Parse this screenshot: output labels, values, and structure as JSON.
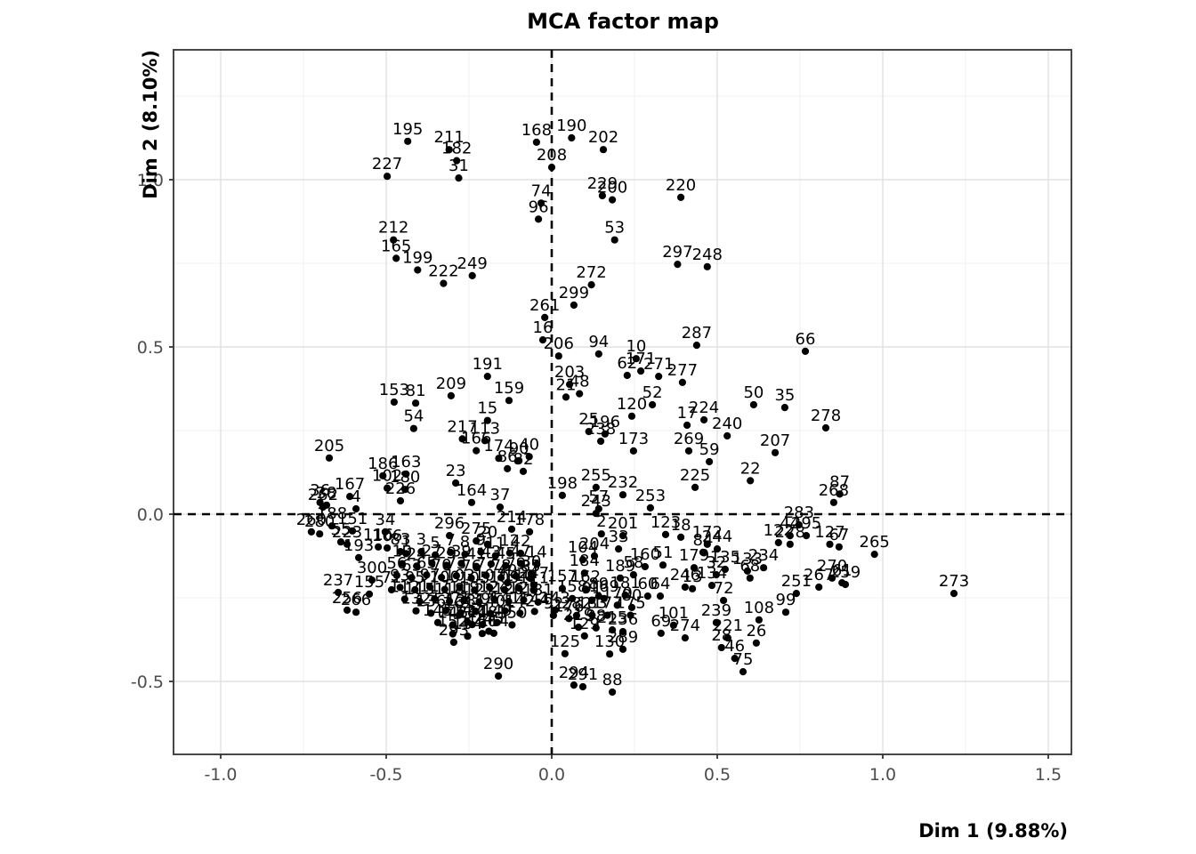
{
  "title": "MCA factor map",
  "chart_data": {
    "type": "scatter",
    "title": "MCA factor map",
    "xlabel": "Dim 1 (9.88%)",
    "ylabel": "Dim 2 (8.10%)",
    "xlim": [
      -1.14,
      1.57
    ],
    "ylim": [
      -0.72,
      1.39
    ],
    "grid": true,
    "legend": "none",
    "point_color": "#000000",
    "grid_major_color": "#e2e2e2",
    "grid_minor_color": "#f0f0f0",
    "panel_border_color": "#333333",
    "tick_text_color": "#4d4d4d",
    "reference_lines": {
      "vline_x": 0,
      "hline_y": 0,
      "style": "dashed",
      "color": "#000000"
    },
    "x_ticks": [
      {
        "value": -1.0,
        "label": "-1.0"
      },
      {
        "value": -0.5,
        "label": "-0.5"
      },
      {
        "value": 0.0,
        "label": "0.0"
      },
      {
        "value": 0.5,
        "label": "0.5"
      },
      {
        "value": 1.0,
        "label": "1.0"
      },
      {
        "value": 1.5,
        "label": "1.5"
      }
    ],
    "y_ticks": [
      {
        "value": 1.0,
        "label": "1.0"
      },
      {
        "value": 0.5,
        "label": "0.5"
      },
      {
        "value": 0.0,
        "label": "0.0"
      },
      {
        "value": -0.5,
        "label": "-0.5"
      }
    ],
    "x_minor": [
      -0.75,
      -0.25,
      0.25,
      0.75,
      1.25
    ],
    "y_minor": [
      -0.25,
      0.25,
      0.75,
      1.25
    ],
    "points": [
      [
        "195",
        -0.435,
        1.115
      ],
      [
        "211",
        -0.31,
        1.09
      ],
      [
        "182",
        -0.287,
        1.057
      ],
      [
        "31",
        -0.281,
        1.005
      ],
      [
        "227",
        -0.497,
        1.01
      ],
      [
        "168",
        -0.046,
        1.112
      ],
      [
        "190",
        0.06,
        1.125
      ],
      [
        "202",
        0.156,
        1.09
      ],
      [
        "208",
        0.0,
        1.037
      ],
      [
        "74",
        -0.032,
        0.93
      ],
      [
        "96",
        -0.04,
        0.882
      ],
      [
        "229",
        0.153,
        0.952
      ],
      [
        "200",
        0.183,
        0.94
      ],
      [
        "220",
        0.39,
        0.947
      ],
      [
        "53",
        0.19,
        0.82
      ],
      [
        "212",
        -0.478,
        0.82
      ],
      [
        "165",
        -0.47,
        0.765
      ],
      [
        "199",
        -0.405,
        0.73
      ],
      [
        "222",
        -0.327,
        0.69
      ],
      [
        "249",
        -0.24,
        0.713
      ],
      [
        "297",
        0.38,
        0.747
      ],
      [
        "248",
        0.47,
        0.74
      ],
      [
        "272",
        0.12,
        0.686
      ],
      [
        "299",
        0.067,
        0.625
      ],
      [
        "261",
        -0.021,
        0.588
      ],
      [
        "16",
        -0.027,
        0.521
      ],
      [
        "206",
        0.021,
        0.473
      ],
      [
        "94",
        0.142,
        0.479
      ],
      [
        "10",
        0.255,
        0.465
      ],
      [
        "62",
        0.228,
        0.415
      ],
      [
        "171",
        0.269,
        0.428
      ],
      [
        "271",
        0.323,
        0.412
      ],
      [
        "277",
        0.395,
        0.394
      ],
      [
        "287",
        0.438,
        0.505
      ],
      [
        "66",
        0.766,
        0.487
      ],
      [
        "191",
        -0.194,
        0.412
      ],
      [
        "159",
        -0.129,
        0.34
      ],
      [
        "153",
        -0.476,
        0.335
      ],
      [
        "81",
        -0.411,
        0.332
      ],
      [
        "209",
        -0.304,
        0.354
      ],
      [
        "54",
        -0.417,
        0.256
      ],
      [
        "15",
        -0.194,
        0.28
      ],
      [
        "203",
        0.054,
        0.388
      ],
      [
        "21",
        0.043,
        0.35
      ],
      [
        "48",
        0.084,
        0.36
      ],
      [
        "52",
        0.304,
        0.327
      ],
      [
        "120",
        0.242,
        0.293
      ],
      [
        "50",
        0.61,
        0.327
      ],
      [
        "35",
        0.704,
        0.319
      ],
      [
        "278",
        0.828,
        0.258
      ],
      [
        "17",
        0.409,
        0.266
      ],
      [
        "224",
        0.46,
        0.282
      ],
      [
        "240",
        0.53,
        0.234
      ],
      [
        "207",
        0.675,
        0.184
      ],
      [
        "269",
        0.414,
        0.189
      ],
      [
        "59",
        0.476,
        0.157
      ],
      [
        "22",
        0.6,
        0.1
      ],
      [
        "225",
        0.433,
        0.08
      ],
      [
        "205",
        -0.672,
        0.168
      ],
      [
        "25",
        0.112,
        0.247
      ],
      [
        "196",
        0.161,
        0.24
      ],
      [
        "238",
        0.148,
        0.218
      ],
      [
        "173",
        0.247,
        0.189
      ],
      [
        "217",
        -0.27,
        0.225
      ],
      [
        "113",
        -0.202,
        0.22
      ],
      [
        "166",
        -0.228,
        0.19
      ],
      [
        "174",
        -0.16,
        0.167
      ],
      [
        "90",
        -0.099,
        0.16
      ],
      [
        "40",
        -0.068,
        0.172
      ],
      [
        "86",
        -0.134,
        0.136
      ],
      [
        "82",
        -0.086,
        0.128
      ],
      [
        "87",
        0.87,
        0.06
      ],
      [
        "268",
        0.852,
        0.035
      ],
      [
        "57",
        0.142,
        0.016
      ],
      [
        "243",
        0.134,
        0.002
      ],
      [
        "232",
        0.215,
        0.058
      ],
      [
        "255",
        0.134,
        0.08
      ],
      [
        "198",
        0.032,
        0.056
      ],
      [
        "253",
        0.298,
        0.019
      ],
      [
        "186",
        -0.51,
        0.115
      ],
      [
        "163",
        -0.44,
        0.12
      ],
      [
        "23",
        -0.29,
        0.093
      ],
      [
        "102",
        -0.497,
        0.078
      ],
      [
        "180",
        -0.443,
        0.074
      ],
      [
        "226",
        -0.457,
        0.04
      ],
      [
        "164",
        -0.242,
        0.035
      ],
      [
        "37",
        -0.156,
        0.021
      ],
      [
        "167",
        -0.61,
        0.053
      ],
      [
        "36",
        -0.7,
        0.035
      ],
      [
        "38",
        -0.68,
        0.027
      ],
      [
        "262",
        -0.691,
        0.021
      ],
      [
        "4",
        -0.591,
        0.016
      ],
      [
        "188",
        -0.664,
        -0.035
      ],
      [
        "260",
        -0.726,
        -0.053
      ],
      [
        "280",
        -0.701,
        -0.059
      ],
      [
        "151",
        -0.602,
        -0.05
      ],
      [
        "34",
        -0.503,
        -0.053
      ],
      [
        "223",
        -0.618,
        -0.09
      ],
      [
        "55",
        -0.637,
        -0.083
      ],
      [
        "116",
        -0.524,
        -0.098
      ],
      [
        "106",
        -0.497,
        -0.101
      ],
      [
        "83",
        -0.457,
        -0.112
      ],
      [
        "193",
        -0.583,
        -0.13
      ],
      [
        "300",
        -0.543,
        -0.197
      ],
      [
        "237",
        -0.645,
        -0.234
      ],
      [
        "155",
        -0.551,
        -0.239
      ],
      [
        "71",
        -0.484,
        -0.226
      ],
      [
        "256",
        -0.618,
        -0.287
      ],
      [
        "266",
        -0.591,
        -0.293
      ],
      [
        "296",
        -0.309,
        -0.064
      ],
      [
        "275",
        -0.228,
        -0.08
      ],
      [
        "20",
        -0.194,
        -0.09
      ],
      [
        "214",
        -0.121,
        -0.045
      ],
      [
        "178",
        -0.067,
        -0.053
      ],
      [
        "42",
        -0.094,
        -0.117
      ],
      [
        "30",
        -0.062,
        -0.178
      ],
      [
        "14",
        -0.045,
        -0.15
      ],
      [
        "49",
        -0.134,
        -0.205
      ],
      [
        "247",
        -0.054,
        -0.213
      ],
      [
        "92",
        0.005,
        -0.303
      ],
      [
        "282",
        0.075,
        -0.303
      ],
      [
        "143",
        0.01,
        -0.287
      ],
      [
        "91",
        0.121,
        -0.258
      ],
      [
        "89",
        0.142,
        -0.245
      ],
      [
        "80",
        0.242,
        -0.279
      ],
      [
        "104",
        0.094,
        -0.136
      ],
      [
        "204",
        0.129,
        -0.125
      ],
      [
        "184",
        0.099,
        -0.176
      ],
      [
        "33",
        0.202,
        -0.104
      ],
      [
        "2",
        0.15,
        -0.059
      ],
      [
        "201",
        0.215,
        -0.064
      ],
      [
        "123",
        0.344,
        -0.061
      ],
      [
        "18",
        0.39,
        -0.069
      ],
      [
        "160",
        0.282,
        -0.157
      ],
      [
        "51",
        0.336,
        -0.152
      ],
      [
        "189",
        0.207,
        -0.191
      ],
      [
        "58",
        0.247,
        -0.181
      ],
      [
        "179",
        0.43,
        -0.16
      ],
      [
        "135",
        0.524,
        -0.165
      ],
      [
        "133",
        0.591,
        -0.17
      ],
      [
        "32",
        0.497,
        -0.181
      ],
      [
        "234",
        0.64,
        -0.16
      ],
      [
        "246",
        0.403,
        -0.218
      ],
      [
        "68",
        0.599,
        -0.191
      ],
      [
        "134",
        0.484,
        -0.213
      ],
      [
        "64",
        0.328,
        -0.245
      ],
      [
        "60",
        0.29,
        -0.245
      ],
      [
        "13",
        0.425,
        -0.223
      ],
      [
        "72",
        0.519,
        -0.258
      ],
      [
        "172",
        0.47,
        -0.09
      ],
      [
        "244",
        0.5,
        -0.104
      ],
      [
        "84",
        0.457,
        -0.114
      ],
      [
        "44",
        0.72,
        -0.064
      ],
      [
        "295",
        0.769,
        -0.064
      ],
      [
        "228",
        0.72,
        -0.09
      ],
      [
        "283",
        0.747,
        -0.032
      ],
      [
        "122",
        0.685,
        -0.085
      ],
      [
        "127",
        0.84,
        -0.09
      ],
      [
        "67",
        0.868,
        -0.098
      ],
      [
        "265",
        0.975,
        -0.12
      ],
      [
        "273",
        1.215,
        -0.237
      ],
      [
        "251",
        0.739,
        -0.237
      ],
      [
        "267",
        0.807,
        -0.218
      ],
      [
        "270",
        0.847,
        -0.191
      ],
      [
        "61",
        0.877,
        -0.205
      ],
      [
        "259",
        0.887,
        -0.21
      ],
      [
        "108",
        0.626,
        -0.316
      ],
      [
        "99",
        0.707,
        -0.293
      ],
      [
        "239",
        0.497,
        -0.324
      ],
      [
        "221",
        0.532,
        -0.37
      ],
      [
        "28",
        0.513,
        -0.399
      ],
      [
        "274",
        0.403,
        -0.37
      ],
      [
        "26",
        0.618,
        -0.385
      ],
      [
        "46",
        0.553,
        -0.431
      ],
      [
        "75",
        0.578,
        -0.471
      ],
      [
        "69",
        0.33,
        -0.356
      ],
      [
        "101",
        0.368,
        -0.332
      ],
      [
        "129",
        0.099,
        -0.364
      ],
      [
        "219",
        0.081,
        -0.338
      ],
      [
        "98",
        0.134,
        -0.34
      ],
      [
        "215",
        0.183,
        -0.346
      ],
      [
        "236",
        0.215,
        -0.351
      ],
      [
        "289",
        0.215,
        -0.404
      ],
      [
        "125",
        0.04,
        -0.417
      ],
      [
        "130",
        0.175,
        -0.418
      ],
      [
        "294",
        0.067,
        -0.511
      ],
      [
        "291",
        0.094,
        -0.516
      ],
      [
        "88",
        0.183,
        -0.532
      ],
      [
        "290",
        -0.161,
        -0.484
      ],
      [
        "293",
        -0.296,
        -0.383
      ],
      [
        "245",
        -0.19,
        -0.35
      ],
      [
        "241",
        -0.24,
        -0.33
      ],
      [
        "114",
        -0.175,
        -0.356
      ],
      [
        "161",
        -0.28,
        -0.302
      ],
      [
        "1",
        -0.44,
        -0.118
      ],
      [
        "3",
        -0.394,
        -0.112
      ],
      [
        "5",
        -0.352,
        -0.122
      ],
      [
        "7",
        -0.306,
        -0.114
      ],
      [
        "8",
        -0.262,
        -0.12
      ],
      [
        "9",
        -0.214,
        -0.113
      ],
      [
        "11",
        -0.17,
        -0.124
      ],
      [
        "12",
        -0.127,
        -0.116
      ],
      [
        "19",
        -0.452,
        -0.148
      ],
      [
        "24",
        -0.408,
        -0.155
      ],
      [
        "27",
        -0.362,
        -0.146
      ],
      [
        "29",
        -0.318,
        -0.153
      ],
      [
        "39",
        -0.273,
        -0.147
      ],
      [
        "41",
        -0.228,
        -0.156
      ],
      [
        "43",
        -0.183,
        -0.149
      ],
      [
        "45",
        -0.139,
        -0.154
      ],
      [
        "47",
        -0.094,
        -0.147
      ],
      [
        "56",
        -0.468,
        -0.183
      ],
      [
        "63",
        -0.423,
        -0.19
      ],
      [
        "65",
        -0.378,
        -0.182
      ],
      [
        "70",
        -0.333,
        -0.189
      ],
      [
        "73",
        -0.288,
        -0.184
      ],
      [
        "76",
        -0.243,
        -0.191
      ],
      [
        "77",
        -0.198,
        -0.183
      ],
      [
        "78",
        -0.153,
        -0.19
      ],
      [
        "79",
        -0.108,
        -0.185
      ],
      [
        "85",
        -0.064,
        -0.192
      ],
      [
        "93",
        -0.458,
        -0.219
      ],
      [
        "95",
        -0.413,
        -0.226
      ],
      [
        "97",
        -0.368,
        -0.218
      ],
      [
        "100",
        -0.323,
        -0.225
      ],
      [
        "103",
        -0.278,
        -0.22
      ],
      [
        "105",
        -0.233,
        -0.227
      ],
      [
        "107",
        -0.188,
        -0.219
      ],
      [
        "109",
        -0.143,
        -0.226
      ],
      [
        "110",
        -0.099,
        -0.221
      ],
      [
        "111",
        -0.054,
        -0.228
      ],
      [
        "112",
        -0.444,
        -0.254
      ],
      [
        "115",
        -0.399,
        -0.261
      ],
      [
        "117",
        -0.354,
        -0.253
      ],
      [
        "118",
        -0.309,
        -0.26
      ],
      [
        "119",
        -0.264,
        -0.255
      ],
      [
        "121",
        -0.219,
        -0.262
      ],
      [
        "124",
        -0.174,
        -0.254
      ],
      [
        "126",
        -0.13,
        -0.261
      ],
      [
        "128",
        -0.085,
        -0.256
      ],
      [
        "131",
        -0.041,
        -0.263
      ],
      [
        "132",
        -0.41,
        -0.289
      ],
      [
        "136",
        -0.365,
        -0.296
      ],
      [
        "137",
        -0.32,
        -0.288
      ],
      [
        "138",
        -0.275,
        -0.295
      ],
      [
        "139",
        -0.23,
        -0.29
      ],
      [
        "140",
        -0.185,
        -0.297
      ],
      [
        "141",
        -0.141,
        -0.289
      ],
      [
        "142",
        -0.096,
        -0.296
      ],
      [
        "144",
        -0.052,
        -0.291
      ],
      [
        "145",
        -0.344,
        -0.324
      ],
      [
        "146",
        -0.299,
        -0.331
      ],
      [
        "147",
        -0.254,
        -0.323
      ],
      [
        "148",
        -0.209,
        -0.33
      ],
      [
        "149",
        -0.165,
        -0.324
      ],
      [
        "150",
        -0.12,
        -0.331
      ],
      [
        "152",
        -0.299,
        -0.358
      ],
      [
        "154",
        -0.254,
        -0.365
      ],
      [
        "156",
        -0.21,
        -0.357
      ],
      [
        "157",
        0.032,
        -0.222
      ],
      [
        "158",
        0.062,
        -0.252
      ],
      [
        "162",
        0.102,
        -0.224
      ],
      [
        "169",
        0.158,
        -0.252
      ],
      [
        "170",
        0.198,
        -0.272
      ],
      [
        "175",
        0.238,
        -0.302
      ],
      [
        "176",
        0.052,
        -0.312
      ],
      [
        "177",
        0.168,
        -0.302
      ],
      [
        "181",
        0.222,
        -0.242
      ],
      [
        "183",
        0.122,
        -0.302
      ]
    ]
  }
}
